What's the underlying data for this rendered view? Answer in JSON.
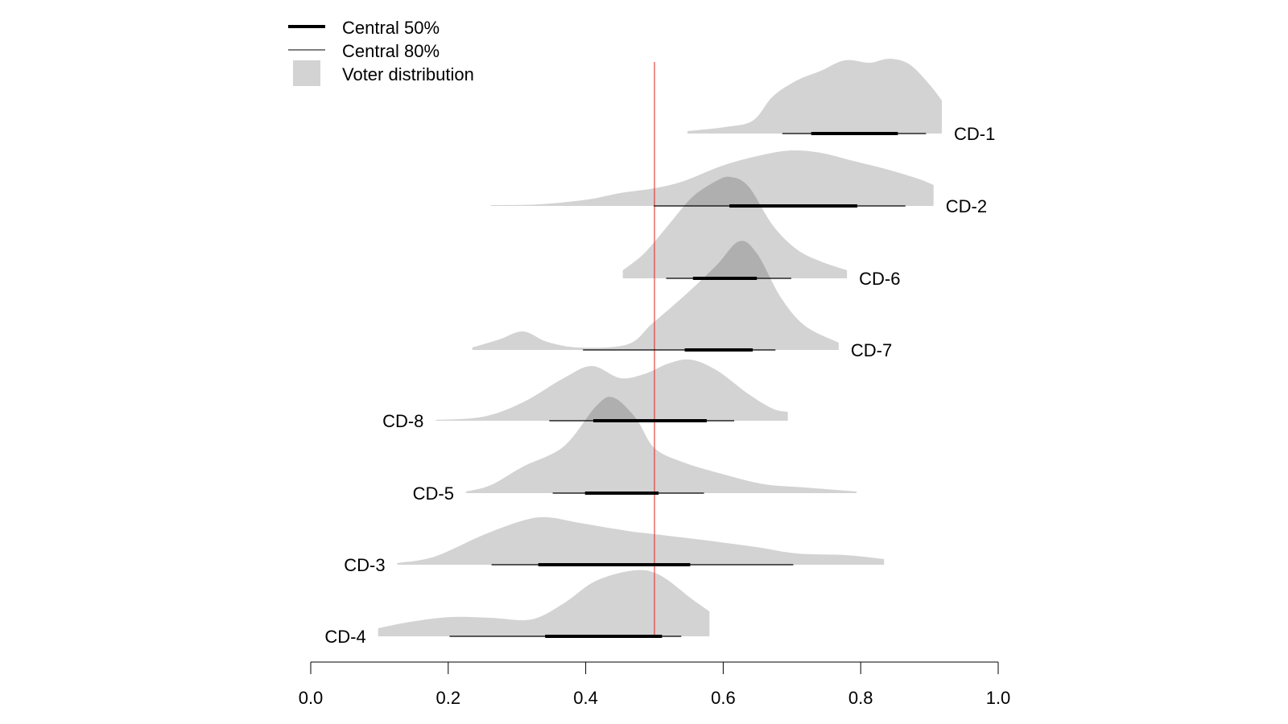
{
  "chart_data": {
    "type": "area",
    "subtype": "ridgeline-density-with-intervals",
    "title": "",
    "xlabel": "",
    "ylabel": "",
    "xlim": [
      0.0,
      1.0
    ],
    "x_ticks": [
      0.0,
      0.2,
      0.4,
      0.6,
      0.8,
      1.0
    ],
    "x_tick_labels": [
      "0.0",
      "0.2",
      "0.4",
      "0.6",
      "0.8",
      "1.0"
    ],
    "grid": false,
    "reference_line": {
      "x": 0.5,
      "color": "#e0201b"
    },
    "legend": {
      "position": "top-left",
      "entries": [
        {
          "label": "Central 50%",
          "kind": "thick-line"
        },
        {
          "label": "Central 80%",
          "kind": "thin-line"
        },
        {
          "label": "Voter distribution",
          "kind": "gray-box"
        }
      ]
    },
    "colors": {
      "density_fill": "#d3d3d3",
      "interval_line": "#000000"
    },
    "series": [
      {
        "name": "CD-1",
        "label_side": "right",
        "central_80": [
          0.686,
          0.895
        ],
        "central_50": [
          0.728,
          0.854
        ],
        "density": [
          [
            0.548,
            0.03
          ],
          [
            0.602,
            0.08
          ],
          [
            0.643,
            0.16
          ],
          [
            0.672,
            0.46
          ],
          [
            0.707,
            0.66
          ],
          [
            0.742,
            0.78
          ],
          [
            0.777,
            0.91
          ],
          [
            0.813,
            0.88
          ],
          [
            0.842,
            0.93
          ],
          [
            0.871,
            0.86
          ],
          [
            0.9,
            0.61
          ],
          [
            0.918,
            0.41
          ]
        ]
      },
      {
        "name": "CD-2",
        "label_side": "right",
        "central_80": [
          0.499,
          0.865
        ],
        "central_50": [
          0.609,
          0.795
        ],
        "density": [
          [
            0.262,
            0.01
          ],
          [
            0.332,
            0.02
          ],
          [
            0.403,
            0.08
          ],
          [
            0.45,
            0.16
          ],
          [
            0.5,
            0.22
          ],
          [
            0.543,
            0.31
          ],
          [
            0.602,
            0.51
          ],
          [
            0.66,
            0.64
          ],
          [
            0.701,
            0.69
          ],
          [
            0.742,
            0.66
          ],
          [
            0.789,
            0.56
          ],
          [
            0.836,
            0.46
          ],
          [
            0.883,
            0.34
          ],
          [
            0.906,
            0.26
          ]
        ]
      },
      {
        "name": "CD-6",
        "label_side": "right",
        "central_80": [
          0.517,
          0.699
        ],
        "central_50": [
          0.556,
          0.649
        ],
        "density": [
          [
            0.454,
            0.1
          ],
          [
            0.485,
            0.31
          ],
          [
            0.52,
            0.66
          ],
          [
            0.555,
            1.01
          ],
          [
            0.59,
            1.21
          ],
          [
            0.611,
            1.26
          ],
          [
            0.637,
            1.14
          ],
          [
            0.672,
            0.66
          ],
          [
            0.707,
            0.36
          ],
          [
            0.742,
            0.21
          ],
          [
            0.78,
            0.1
          ]
        ]
      },
      {
        "name": "CD-7",
        "label_side": "right",
        "central_80": [
          0.396,
          0.676
        ],
        "central_50": [
          0.544,
          0.643
        ],
        "density": [
          [
            0.235,
            0.03
          ],
          [
            0.274,
            0.13
          ],
          [
            0.309,
            0.23
          ],
          [
            0.344,
            0.1
          ],
          [
            0.391,
            0.03
          ],
          [
            0.461,
            0.07
          ],
          [
            0.497,
            0.33
          ],
          [
            0.543,
            0.67
          ],
          [
            0.59,
            1.05
          ],
          [
            0.623,
            1.35
          ],
          [
            0.649,
            1.2
          ],
          [
            0.684,
            0.65
          ],
          [
            0.719,
            0.3
          ],
          [
            0.768,
            0.09
          ]
        ]
      },
      {
        "name": "CD-8",
        "label_side": "left",
        "central_80": [
          0.347,
          0.616
        ],
        "central_50": [
          0.411,
          0.576
        ],
        "density": [
          [
            0.182,
            0.01
          ],
          [
            0.251,
            0.05
          ],
          [
            0.309,
            0.23
          ],
          [
            0.368,
            0.53
          ],
          [
            0.409,
            0.68
          ],
          [
            0.45,
            0.53
          ],
          [
            0.485,
            0.58
          ],
          [
            0.52,
            0.71
          ],
          [
            0.552,
            0.76
          ],
          [
            0.59,
            0.63
          ],
          [
            0.637,
            0.33
          ],
          [
            0.672,
            0.15
          ],
          [
            0.694,
            0.11
          ]
        ]
      },
      {
        "name": "CD-5",
        "label_side": "left",
        "central_80": [
          0.352,
          0.572
        ],
        "central_50": [
          0.399,
          0.506
        ],
        "density": [
          [
            0.226,
            0.02
          ],
          [
            0.262,
            0.1
          ],
          [
            0.309,
            0.33
          ],
          [
            0.368,
            0.58
          ],
          [
            0.415,
            1.08
          ],
          [
            0.44,
            1.19
          ],
          [
            0.473,
            0.93
          ],
          [
            0.5,
            0.56
          ],
          [
            0.543,
            0.38
          ],
          [
            0.602,
            0.23
          ],
          [
            0.66,
            0.11
          ],
          [
            0.719,
            0.07
          ],
          [
            0.794,
            0.02
          ]
        ]
      },
      {
        "name": "CD-3",
        "label_side": "left",
        "central_80": [
          0.263,
          0.702
        ],
        "central_50": [
          0.331,
          0.552
        ],
        "density": [
          [
            0.126,
            0.02
          ],
          [
            0.18,
            0.1
          ],
          [
            0.251,
            0.37
          ],
          [
            0.309,
            0.55
          ],
          [
            0.344,
            0.59
          ],
          [
            0.391,
            0.52
          ],
          [
            0.461,
            0.42
          ],
          [
            0.5,
            0.38
          ],
          [
            0.578,
            0.3
          ],
          [
            0.648,
            0.22
          ],
          [
            0.707,
            0.14
          ],
          [
            0.778,
            0.12
          ],
          [
            0.834,
            0.07
          ]
        ]
      },
      {
        "name": "CD-4",
        "label_side": "left",
        "central_80": [
          0.202,
          0.539
        ],
        "central_50": [
          0.341,
          0.511
        ],
        "density": [
          [
            0.098,
            0.1
          ],
          [
            0.145,
            0.18
          ],
          [
            0.204,
            0.24
          ],
          [
            0.262,
            0.23
          ],
          [
            0.321,
            0.21
          ],
          [
            0.368,
            0.41
          ],
          [
            0.415,
            0.69
          ],
          [
            0.471,
            0.82
          ],
          [
            0.508,
            0.76
          ],
          [
            0.555,
            0.46
          ],
          [
            0.58,
            0.31
          ]
        ]
      }
    ]
  }
}
